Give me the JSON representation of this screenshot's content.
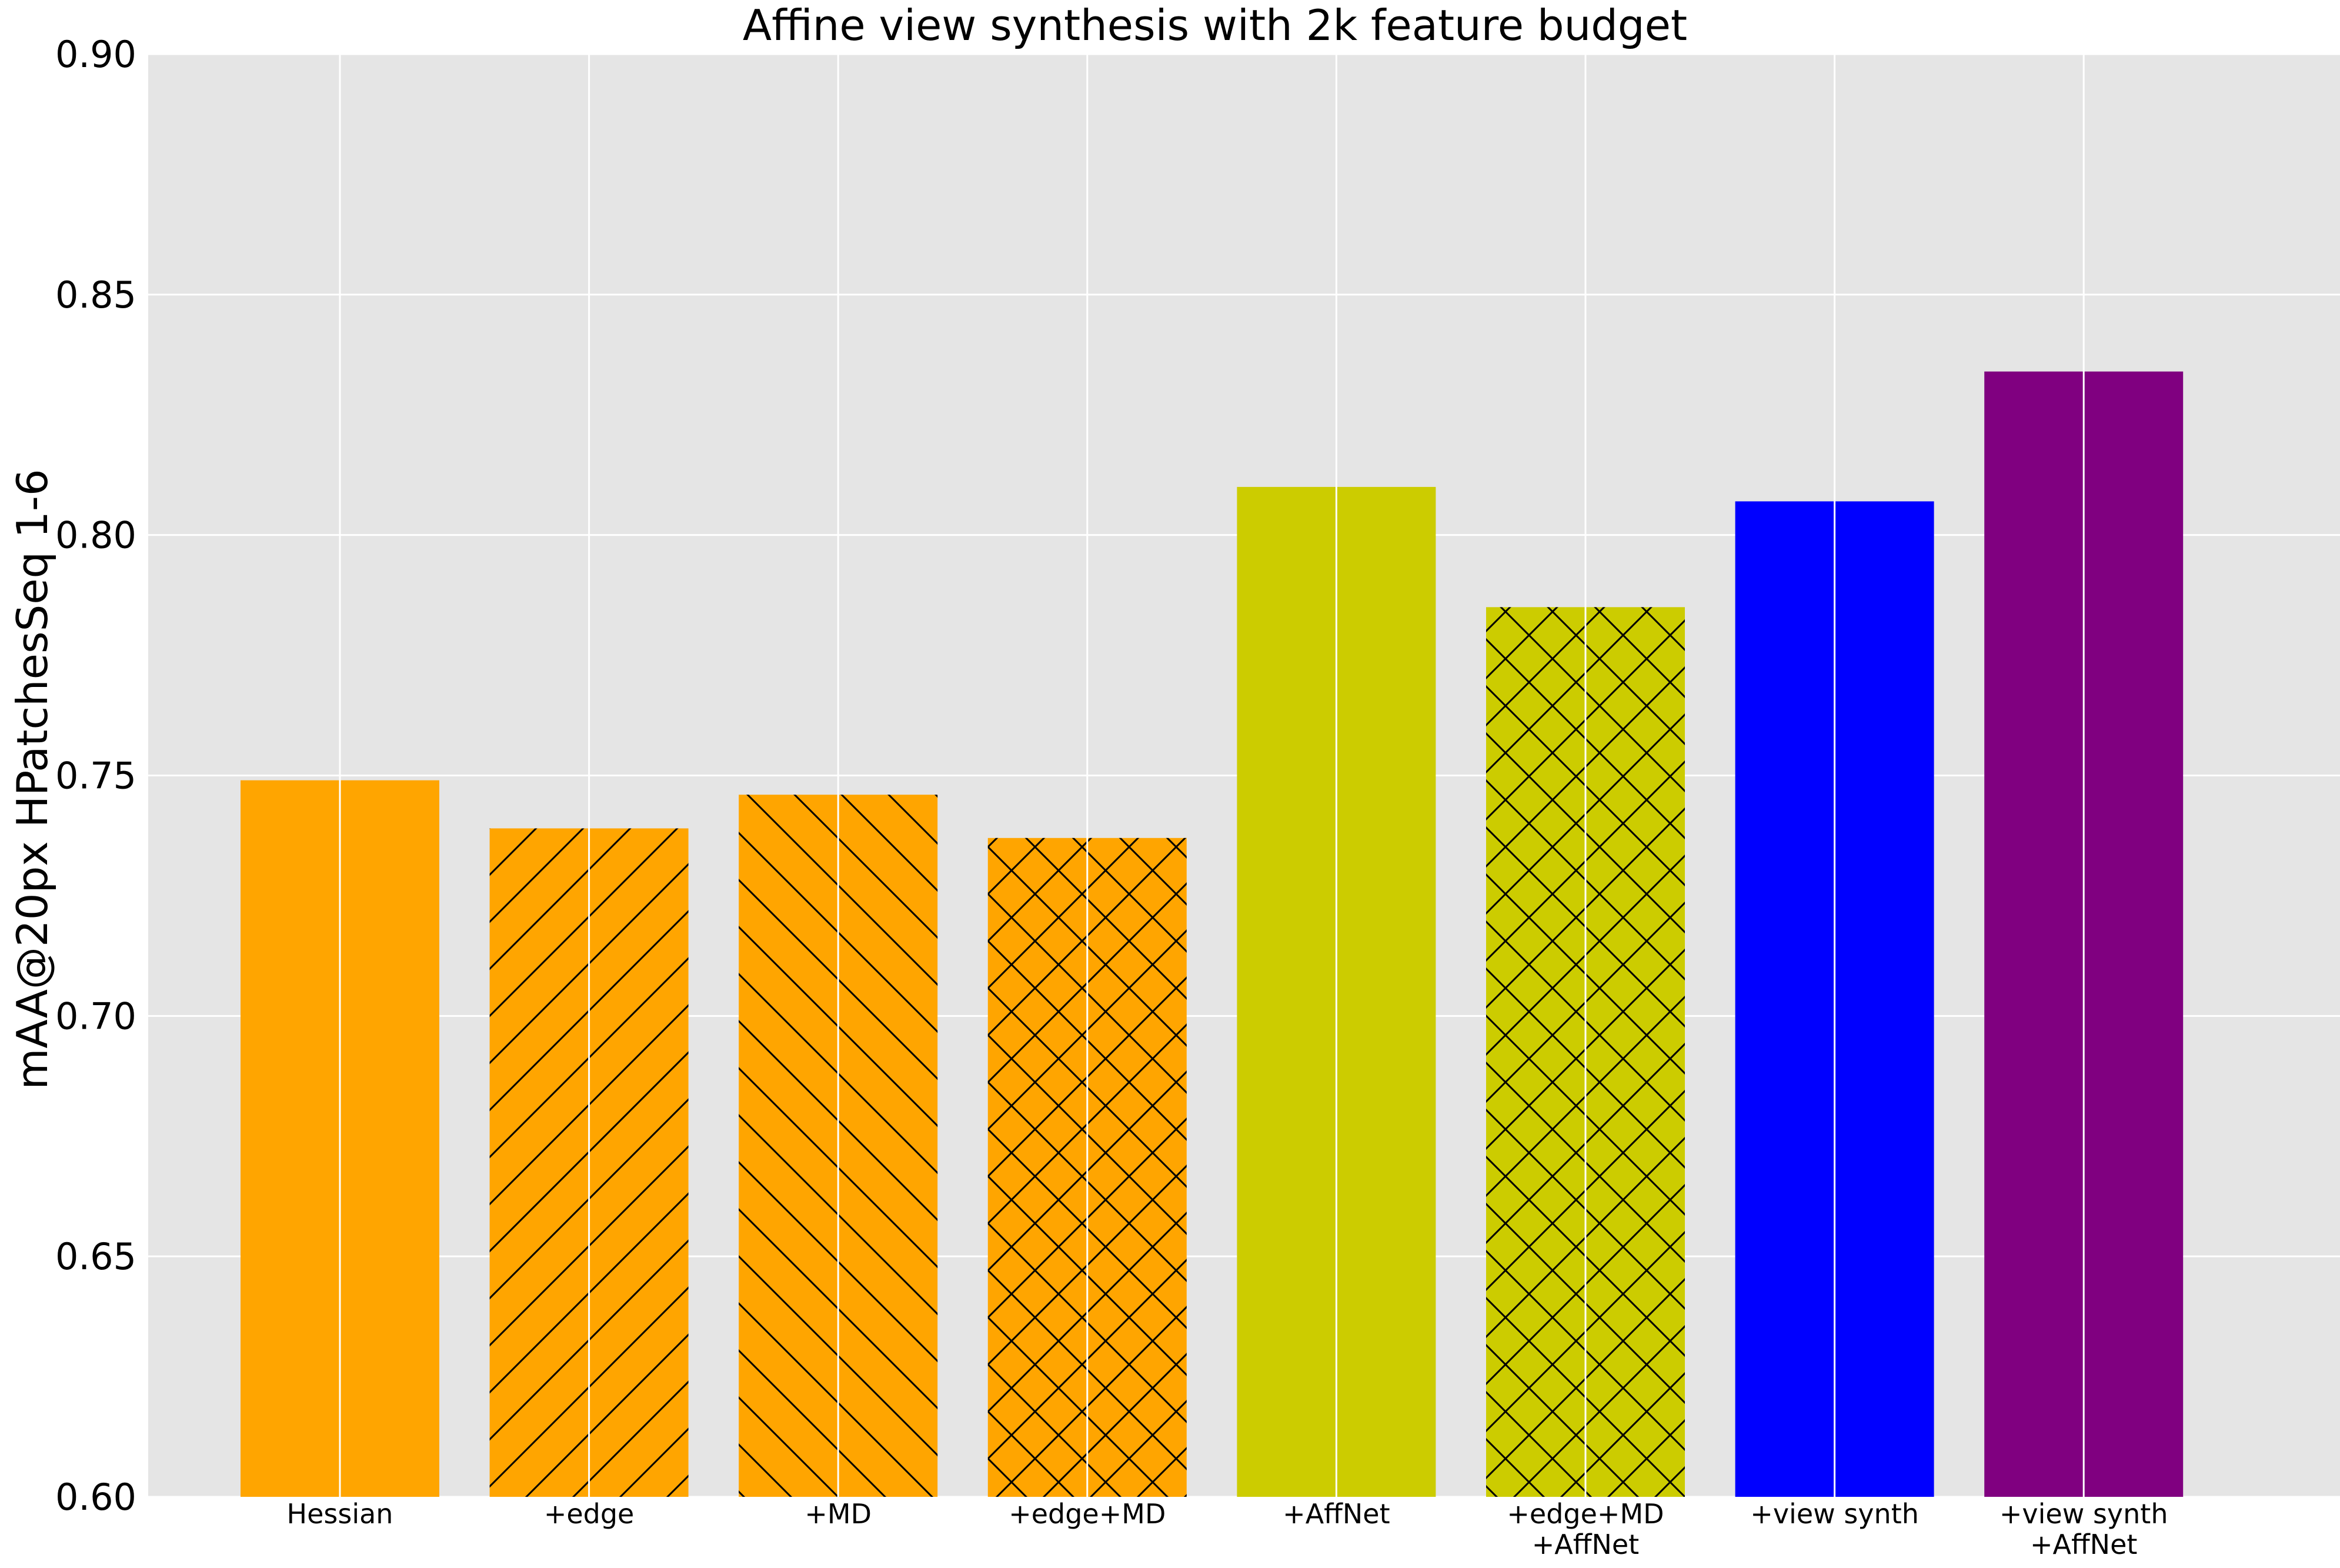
{
  "chart_data": {
    "type": "bar",
    "title": "Affine view synthesis with 2k feature budget",
    "xlabel": "",
    "ylabel": "mAA@20px HPatchesSeq 1-6",
    "ylim": [
      0.6,
      0.9
    ],
    "yticks": [
      "0.60",
      "0.65",
      "0.70",
      "0.75",
      "0.80",
      "0.85",
      "0.90"
    ],
    "ytick_values": [
      0.6,
      0.65,
      0.7,
      0.75,
      0.8,
      0.85,
      0.9
    ],
    "grid": true,
    "legend": "none",
    "background_color": "#e5e5e5",
    "grid_color": "#ffffff",
    "categories": [
      [
        "Hessian"
      ],
      [
        "+edge"
      ],
      [
        "+MD"
      ],
      [
        "+edge+MD"
      ],
      [
        "+AffNet"
      ],
      [
        "+edge+MD",
        "+AffNet"
      ],
      [
        "+view synth"
      ],
      [
        "+view synth",
        "+AffNet"
      ]
    ],
    "values": [
      0.749,
      0.739,
      0.746,
      0.737,
      0.81,
      0.785,
      0.807,
      0.834
    ],
    "colors": [
      "#ffa500",
      "#ffa500",
      "#ffa500",
      "#ffa500",
      "#cccc00",
      "#cccc00",
      "#0000ff",
      "#800080"
    ],
    "hatches": [
      "none",
      "forward-diagonal",
      "back-diagonal",
      "cross",
      "none",
      "cross",
      "none",
      "none"
    ]
  }
}
